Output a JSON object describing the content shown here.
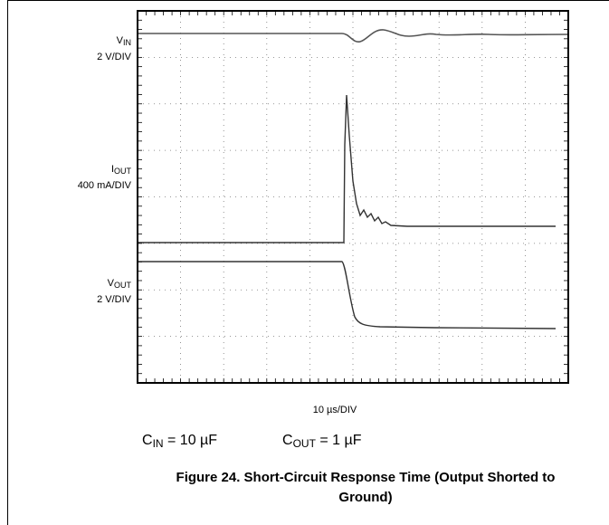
{
  "channels": [
    {
      "symbol": "V",
      "subscript": "IN",
      "scale": "2 V/DIV"
    },
    {
      "symbol": "I",
      "subscript": "OUT",
      "scale": "400 mA/DIV"
    },
    {
      "symbol": "V",
      "subscript": "OUT",
      "scale": "2 V/DIV"
    }
  ],
  "timebase": "10 µs/DIV",
  "conditions": [
    {
      "symbol": "C",
      "subscript": "IN",
      "text": " = 10 µF"
    },
    {
      "symbol": "C",
      "subscript": "OUT",
      "text": " = 1 µF"
    }
  ],
  "caption": {
    "line1": "Figure 24. Short-Circuit Response Time (Output Shorted to",
    "line2": "Ground)"
  }
}
